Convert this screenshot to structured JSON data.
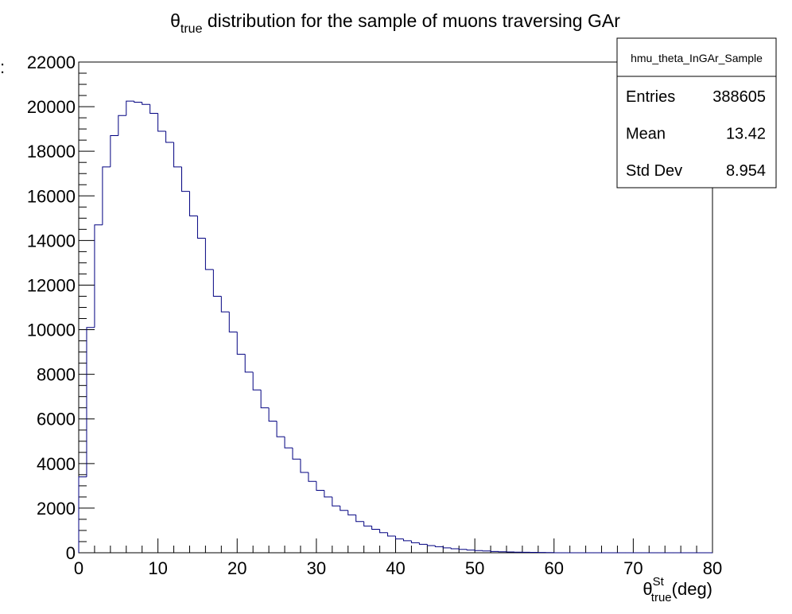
{
  "chart_data": {
    "type": "histogram",
    "title": {
      "symbol": "θ",
      "subscript": "true",
      "text": " distribution for the sample of muons traversing GAr"
    },
    "x_label": {
      "symbol": "θ",
      "superscript": "St",
      "subscript": "true",
      "text": "(deg)"
    },
    "y_label": ":",
    "color": "#000080",
    "bins": [
      0,
      1,
      2,
      3,
      4,
      5,
      6,
      7,
      8,
      9,
      10,
      11,
      12,
      13,
      14,
      15,
      16,
      17,
      18,
      19,
      20,
      21,
      22,
      23,
      24,
      25,
      26,
      27,
      28,
      29,
      30,
      31,
      32,
      33,
      34,
      35,
      36,
      37,
      38,
      39,
      40,
      41,
      42,
      43,
      44,
      45,
      46,
      47,
      48,
      49,
      50,
      51,
      52,
      53,
      54,
      55,
      56,
      57,
      58,
      59,
      60,
      61,
      62,
      63,
      64,
      65,
      66,
      67,
      68,
      69,
      70,
      71,
      72,
      73,
      74,
      75,
      76,
      77,
      78,
      79,
      80
    ],
    "values": [
      3400,
      10100,
      14700,
      17300,
      18700,
      19600,
      20250,
      20200,
      20100,
      19700,
      18900,
      18400,
      17300,
      16200,
      15100,
      14100,
      12700,
      11500,
      10800,
      9900,
      8900,
      8100,
      7300,
      6500,
      5900,
      5200,
      4700,
      4200,
      3600,
      3200,
      2800,
      2500,
      2100,
      1900,
      1700,
      1400,
      1200,
      1050,
      900,
      750,
      620,
      540,
      450,
      380,
      320,
      270,
      220,
      180,
      150,
      120,
      100,
      80,
      60,
      45,
      35,
      28,
      22,
      16,
      12,
      8,
      0,
      0,
      0,
      0,
      0,
      0,
      0,
      0,
      0,
      0,
      0,
      0,
      0,
      0,
      0,
      0,
      0,
      0,
      0,
      0
    ],
    "xlim": [
      0,
      80
    ],
    "xticks": [
      0,
      10,
      20,
      30,
      40,
      50,
      60,
      70,
      80
    ],
    "ylim": [
      0,
      22000
    ],
    "yticks": [
      0,
      2000,
      4000,
      6000,
      8000,
      10000,
      12000,
      14000,
      16000,
      18000,
      20000,
      22000
    ],
    "stats": {
      "name": "hmu_theta_InGAr_Sample",
      "rows": [
        {
          "label": "Entries",
          "value": 388605
        },
        {
          "label": "Mean",
          "value": 13.42
        },
        {
          "label": "Std Dev",
          "value": 8.954
        }
      ]
    }
  }
}
